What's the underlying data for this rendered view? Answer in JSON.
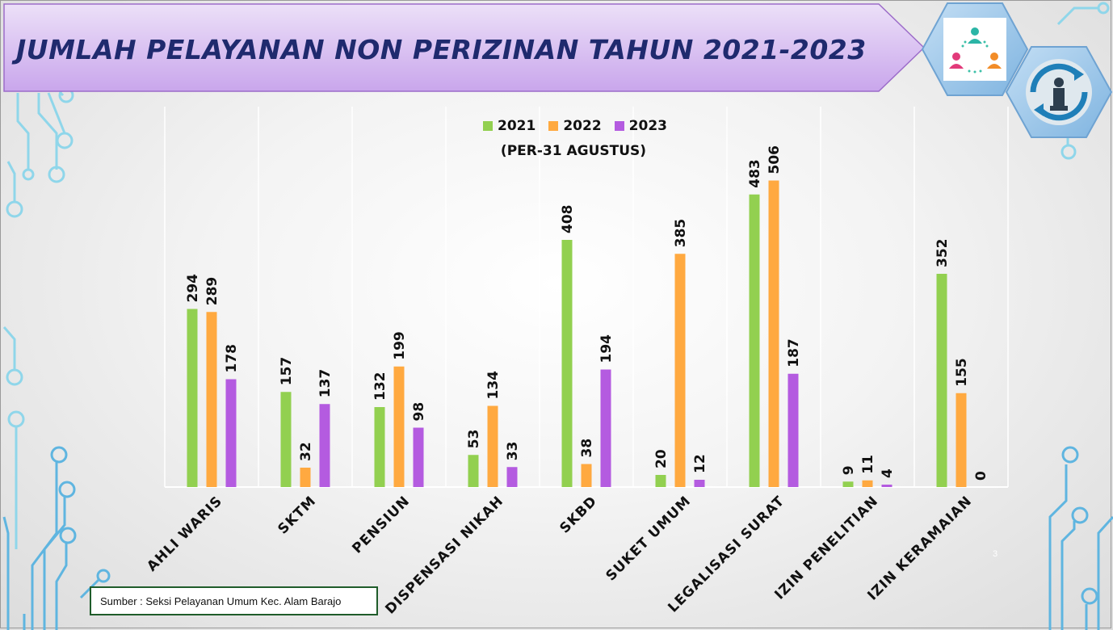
{
  "slide": {
    "title": "JUMLAH PELAYANAN NON PERIZINAN TAHUN 2021-2023",
    "page_number": "3",
    "source": "Sumber : Seksi Pelayanan Umum Kec. Alam Barajo",
    "icons": [
      "people-network-icon",
      "businessman-cycle-icon"
    ]
  },
  "colors": {
    "series_2021": "#92d050",
    "series_2022": "#ffa940",
    "series_2023": "#b45be0",
    "title_text": "#1f2a6e",
    "banner_fill": "#d9c2ef",
    "circuit_lines": "#7fd3e6"
  },
  "chart_data": {
    "type": "bar",
    "title": "",
    "subtitle": "(PER-31 AGUSTUS)",
    "xlabel": "",
    "ylabel": "",
    "categories": [
      "AHLI WARIS",
      "SKTM",
      "PENSIUN",
      "DISPENSASI NIKAH",
      "SKBD",
      "SUKET UMUM",
      "LEGALISASI SURAT",
      "IZIN PENELITIAN",
      "IZIN KERAMAIAN"
    ],
    "series": [
      {
        "name": "2021",
        "values": [
          294,
          157,
          132,
          53,
          408,
          20,
          483,
          9,
          352
        ]
      },
      {
        "name": "2022",
        "values": [
          289,
          32,
          199,
          134,
          38,
          385,
          506,
          11,
          155
        ]
      },
      {
        "name": "2023",
        "values": [
          178,
          137,
          98,
          33,
          194,
          12,
          187,
          4,
          0
        ]
      }
    ],
    "ylim": [
      0,
      600
    ],
    "grid": "vertical",
    "legend_position": "top",
    "data_labels": true
  }
}
